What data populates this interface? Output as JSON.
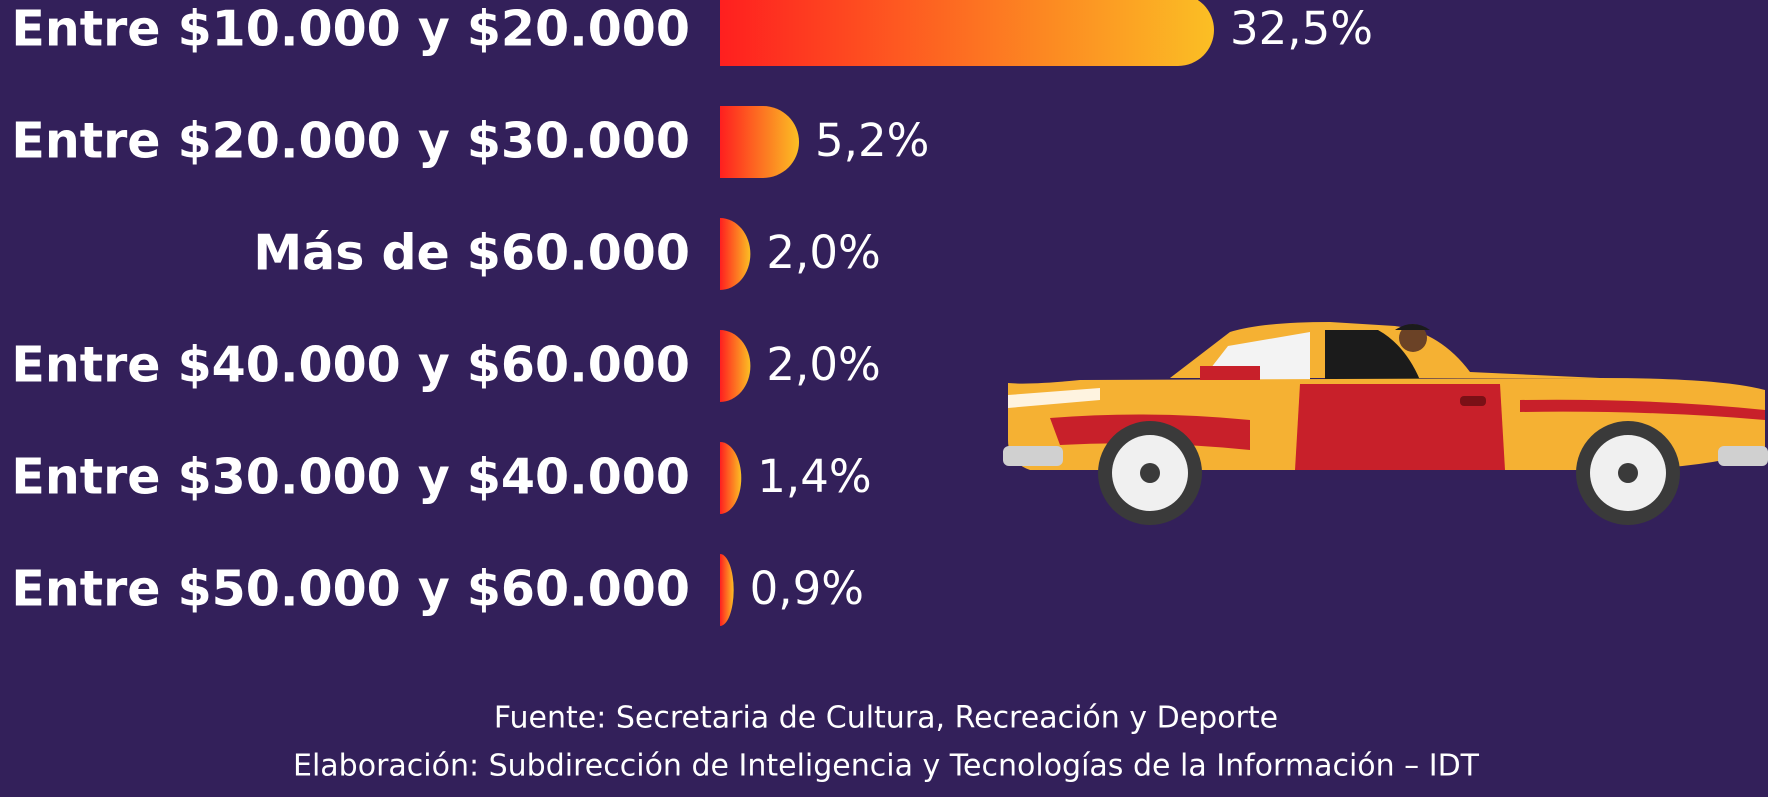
{
  "chart_data": {
    "type": "bar",
    "orientation": "horizontal",
    "categories": [
      "Entre $10.000 y $20.000",
      "Entre $20.000 y $30.000",
      "Más de $60.000",
      "Entre $40.000 y $60.000",
      "Entre $30.000 y $40.000",
      "Entre $50.000 y $60.000"
    ],
    "values": [
      32.5,
      5.2,
      2.0,
      2.0,
      1.4,
      0.9
    ],
    "value_labels": [
      "32,5%",
      "5,2%",
      "2,0%",
      "2,0%",
      "1,4%",
      "0,9%"
    ],
    "colors": [
      "#ff1f1f",
      "#fbbf24"
    ],
    "source": "Fuente: Secretaria de Cultura, Recreación y Deporte",
    "credit": "Elaboración: Subdirección de Inteligencia y Tecnologías de la Información – IDT"
  }
}
